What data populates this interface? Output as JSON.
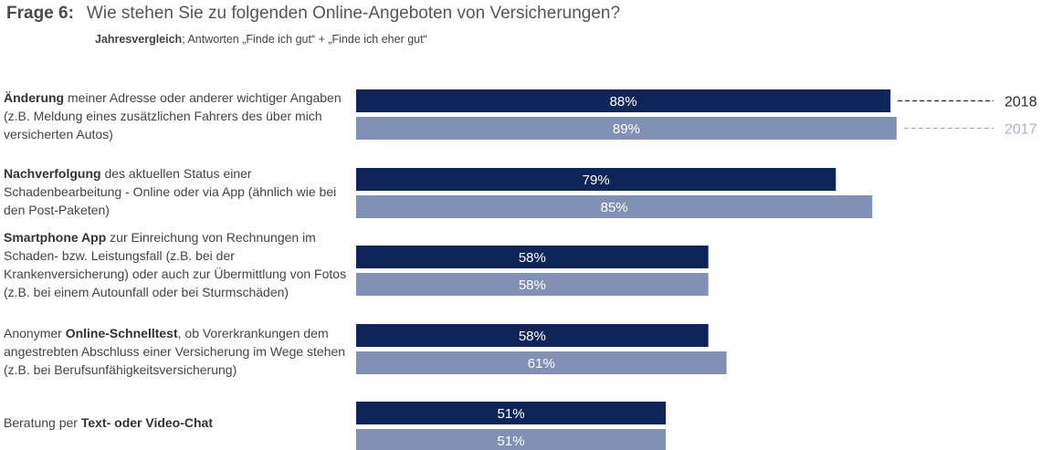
{
  "header": {
    "frage": "Frage 6:",
    "title": "Wie stehen Sie zu folgenden Online-Angeboten von Versicherungen?",
    "subtitle_bold": "Jahresvergleich",
    "subtitle_rest": "; Antworten „Finde ich gut“ + „Finde ich eher gut“"
  },
  "colors": {
    "series_2018": "#0f2557",
    "series_2017": "#8190b4",
    "label_2017": "#a9b3cc"
  },
  "chart_data": {
    "type": "bar",
    "orientation": "horizontal",
    "xlim": [
      0,
      100
    ],
    "unit": "%",
    "legend_placement": "right",
    "categories": [
      {
        "bold": "Änderung",
        "rest": " meiner Adresse oder anderer wichtiger Angaben (z.B. Meldung eines zusätzlichen Fahrers des über mich versicherten Autos)",
        "bold_first": true
      },
      {
        "bold": "Nachverfolgung",
        "rest": " des aktuellen Status einer Schadenbearbeitung - Online oder via App (ähnlich wie bei den Post-Paketen)",
        "bold_first": true
      },
      {
        "bold": "Smartphone App",
        "rest": " zur Einreichung von Rechnungen im Schaden- bzw. Leistungsfall (z.B. bei der Krankenversicherung) oder auch zur Übermittlung von Fotos (z.B. bei einem Autounfall oder bei Sturmschäden)",
        "bold_first": true
      },
      {
        "pre": "Anonymer ",
        "bold": "Online-Schnelltest",
        "rest": ", ob Vorerkrankungen dem angestrebten Abschluss einer Versicherung im Wege stehen (z.B. bei Berufsunfähigkeitsversicherung)",
        "bold_first": false
      },
      {
        "pre": "Beratung per ",
        "bold": "Text- oder Video-Chat",
        "rest": "",
        "bold_first": false
      }
    ],
    "series": [
      {
        "name": "2018",
        "values": [
          88,
          79,
          58,
          58,
          51
        ],
        "labels": [
          "88%",
          "79%",
          "58%",
          "58%",
          "51%"
        ]
      },
      {
        "name": "2017",
        "values": [
          89,
          85,
          58,
          61,
          51
        ],
        "labels": [
          "89%",
          "85%",
          "58%",
          "61%",
          "51%"
        ]
      }
    ]
  }
}
